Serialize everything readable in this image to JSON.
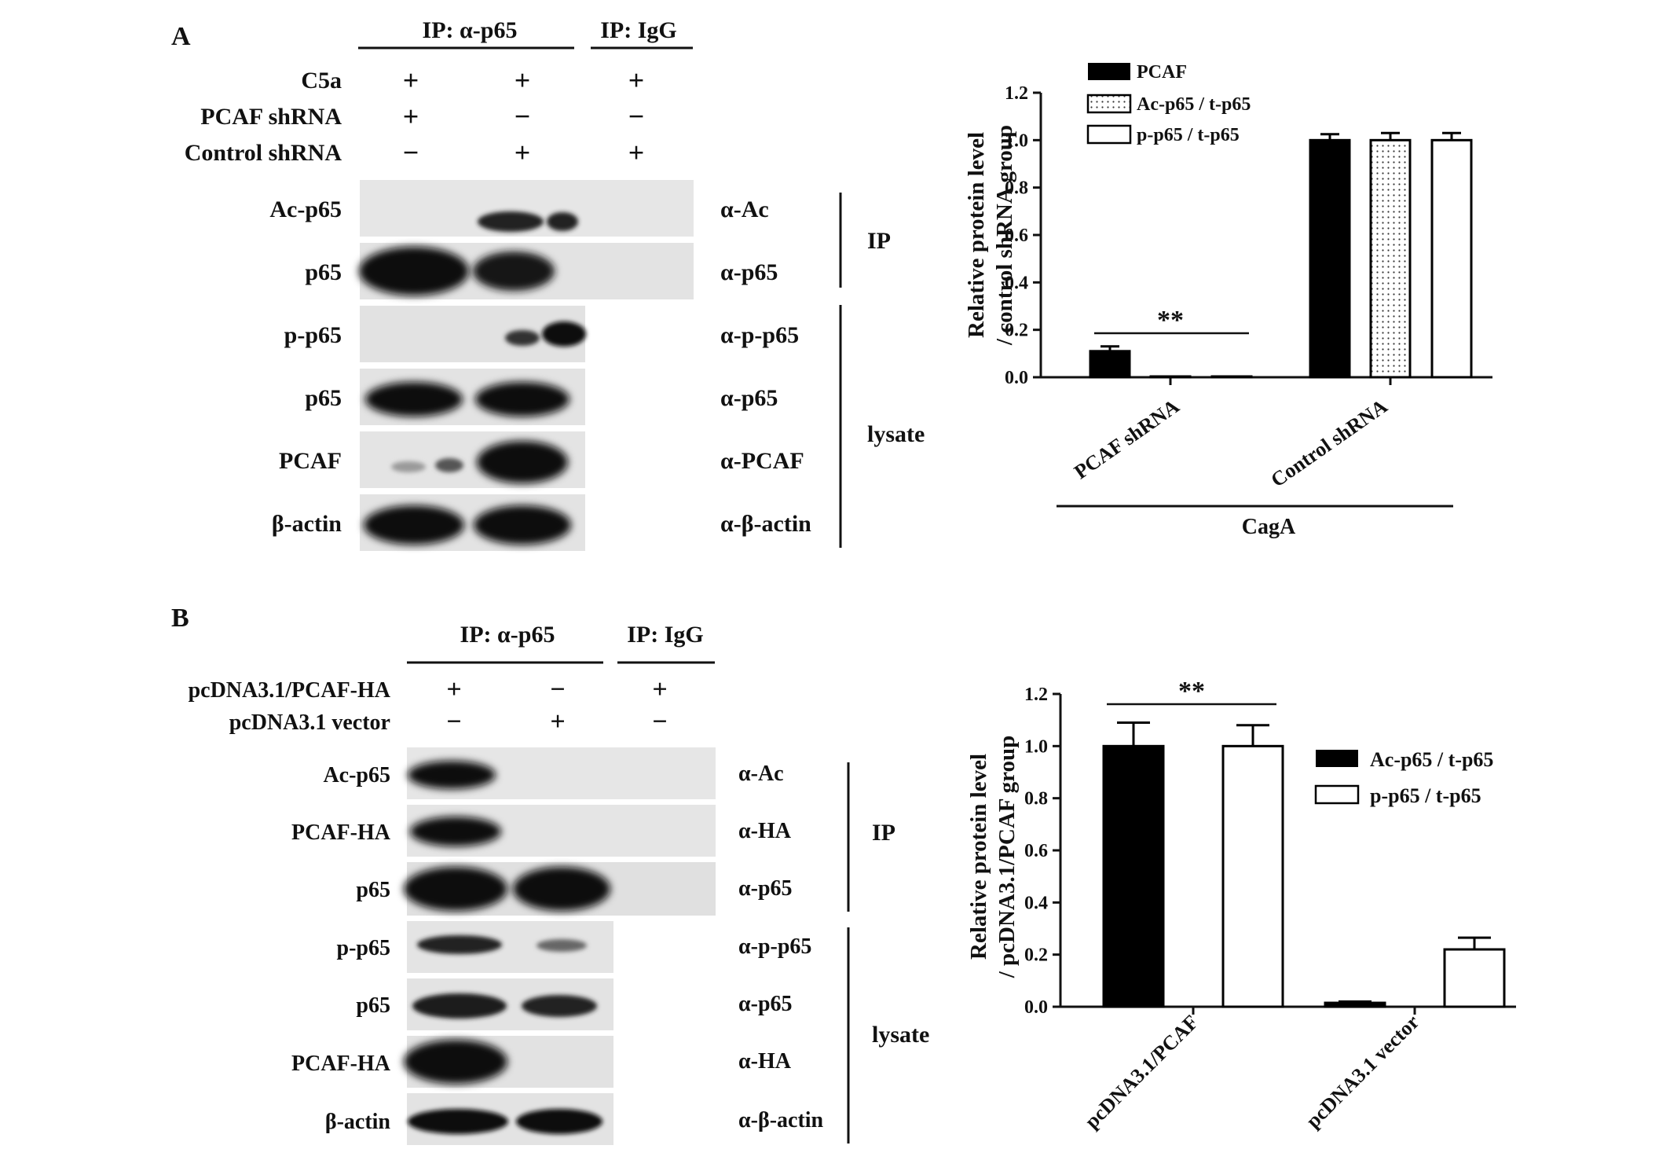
{
  "panelA": {
    "letter": "A",
    "ip_header_main": "IP: α-p65",
    "ip_header_igg": "IP: IgG",
    "conditions": [
      {
        "label": "C5a",
        "signs": [
          "+",
          "+",
          "+"
        ]
      },
      {
        "label": "PCAF shRNA",
        "signs": [
          "+",
          "−",
          "−"
        ]
      },
      {
        "label": "Control shRNA",
        "signs": [
          "−",
          "+",
          "+"
        ]
      }
    ],
    "blots": [
      {
        "protein": "Ac-p65",
        "antibody": "α-Ac"
      },
      {
        "protein": "p65",
        "antibody": "α-p65"
      },
      {
        "protein": "p-p65",
        "antibody": "α-p-p65"
      },
      {
        "protein": "p65",
        "antibody": "α-p65"
      },
      {
        "protein": "PCAF",
        "antibody": "α-PCAF"
      },
      {
        "protein": "β-actin",
        "antibody": "α-β-actin"
      }
    ],
    "bracket_ip": "IP",
    "bracket_lysate": "lysate"
  },
  "panelB": {
    "letter": "B",
    "ip_header_main": "IP: α-p65",
    "ip_header_igg": "IP: IgG",
    "conditions": [
      {
        "label": "pcDNA3.1/PCAF-HA",
        "signs": [
          "+",
          "−",
          "+"
        ]
      },
      {
        "label": "pcDNA3.1 vector",
        "signs": [
          "−",
          "+",
          "−"
        ]
      }
    ],
    "blots": [
      {
        "protein": "Ac-p65",
        "antibody": "α-Ac"
      },
      {
        "protein": "PCAF-HA",
        "antibody": "α-HA"
      },
      {
        "protein": "p65",
        "antibody": "α-p65"
      },
      {
        "protein": "p-p65",
        "antibody": "α-p-p65"
      },
      {
        "protein": "p65",
        "antibody": "α-p65"
      },
      {
        "protein": "PCAF-HA",
        "antibody": "α-HA"
      },
      {
        "protein": "β-actin",
        "antibody": "α-β-actin"
      }
    ],
    "bracket_ip": "IP",
    "bracket_lysate": "lysate"
  },
  "chart_data": [
    {
      "type": "bar",
      "ylabel_line1": "Relative protein level",
      "ylabel_line2": "/ control shRNA group",
      "categories": [
        "PCAF shRNA",
        "Control shRNA"
      ],
      "group_label": "CagA",
      "series": [
        {
          "name": "PCAF",
          "values": [
            0.11,
            1.0
          ],
          "errors": [
            0.02,
            0.025
          ],
          "fill": "#000000"
        },
        {
          "name": "Ac-p65 / t-p65",
          "values": [
            0.003,
            1.0
          ],
          "errors": [
            0.0,
            0.03
          ],
          "fill": "dotted"
        },
        {
          "name": "p-p65 / t-p65",
          "values": [
            0.003,
            1.0
          ],
          "errors": [
            0.0,
            0.03
          ],
          "fill": "#ffffff"
        }
      ],
      "ylim": [
        0,
        1.2
      ],
      "yticks": [
        "0.0",
        "0.2",
        "0.4",
        "0.6",
        "0.8",
        "1.0",
        "1.2"
      ],
      "significance": "**",
      "legend_position": "top-left"
    },
    {
      "type": "bar",
      "ylabel_line1": "Relative protein level",
      "ylabel_line2": "/ pcDNA3.1/PCAF group",
      "categories": [
        "pcDNA3.1/PCAF",
        "pcDNA3.1 vector"
      ],
      "series": [
        {
          "name": "Ac-p65  / t-p65",
          "values": [
            1.0,
            0.015
          ],
          "errors": [
            0.09,
            0.005
          ],
          "fill": "#000000"
        },
        {
          "name": "p-p65 / t-p65",
          "values": [
            1.0,
            0.22
          ],
          "errors": [
            0.08,
            0.045
          ],
          "fill": "#ffffff"
        }
      ],
      "ylim": [
        0,
        1.2
      ],
      "yticks": [
        "0.0",
        "0.2",
        "0.4",
        "0.6",
        "0.8",
        "1.0",
        "1.2"
      ],
      "significance": "**",
      "legend_position": "right"
    }
  ]
}
